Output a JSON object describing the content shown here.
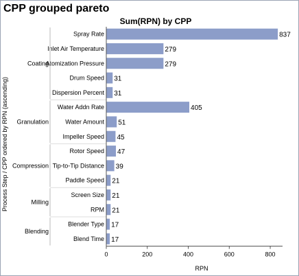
{
  "page": {
    "title": "CPP grouped pareto"
  },
  "chart_data": {
    "type": "bar",
    "orientation": "horizontal",
    "title": "Sum(RPN) by CPP",
    "xlabel": "RPN",
    "ylabel": "Process Step / CPP ordered by RPN (ascending)",
    "xlim": [
      0,
      860
    ],
    "xticks": [
      0,
      200,
      400,
      600,
      800
    ],
    "grid": false,
    "bar_color": "#8c9dc9",
    "groups": [
      {
        "name": "Coating",
        "items": [
          {
            "category": "Spray Rate",
            "value": 837
          },
          {
            "category": "Inlet Air Temperature",
            "value": 279
          },
          {
            "category": "Atomization Pressure",
            "value": 279
          },
          {
            "category": "Drum Speed",
            "value": 31
          },
          {
            "category": "Dispersion Percent",
            "value": 31
          }
        ]
      },
      {
        "name": "Granulation",
        "items": [
          {
            "category": "Water Addn Rate",
            "value": 405
          },
          {
            "category": "Water Amount",
            "value": 51
          },
          {
            "category": "Impeller Speed",
            "value": 45
          }
        ]
      },
      {
        "name": "Compression",
        "items": [
          {
            "category": "Rotor Speed",
            "value": 47
          },
          {
            "category": "Tip-to-Tip Distance",
            "value": 39
          },
          {
            "category": "Paddle Speed",
            "value": 21
          }
        ]
      },
      {
        "name": "Milling",
        "items": [
          {
            "category": "Screen Size",
            "value": 21
          },
          {
            "category": "RPM",
            "value": 21
          }
        ]
      },
      {
        "name": "Blending",
        "items": [
          {
            "category": "Blender Type",
            "value": 17
          },
          {
            "category": "Blend Time",
            "value": 17
          }
        ]
      }
    ]
  }
}
